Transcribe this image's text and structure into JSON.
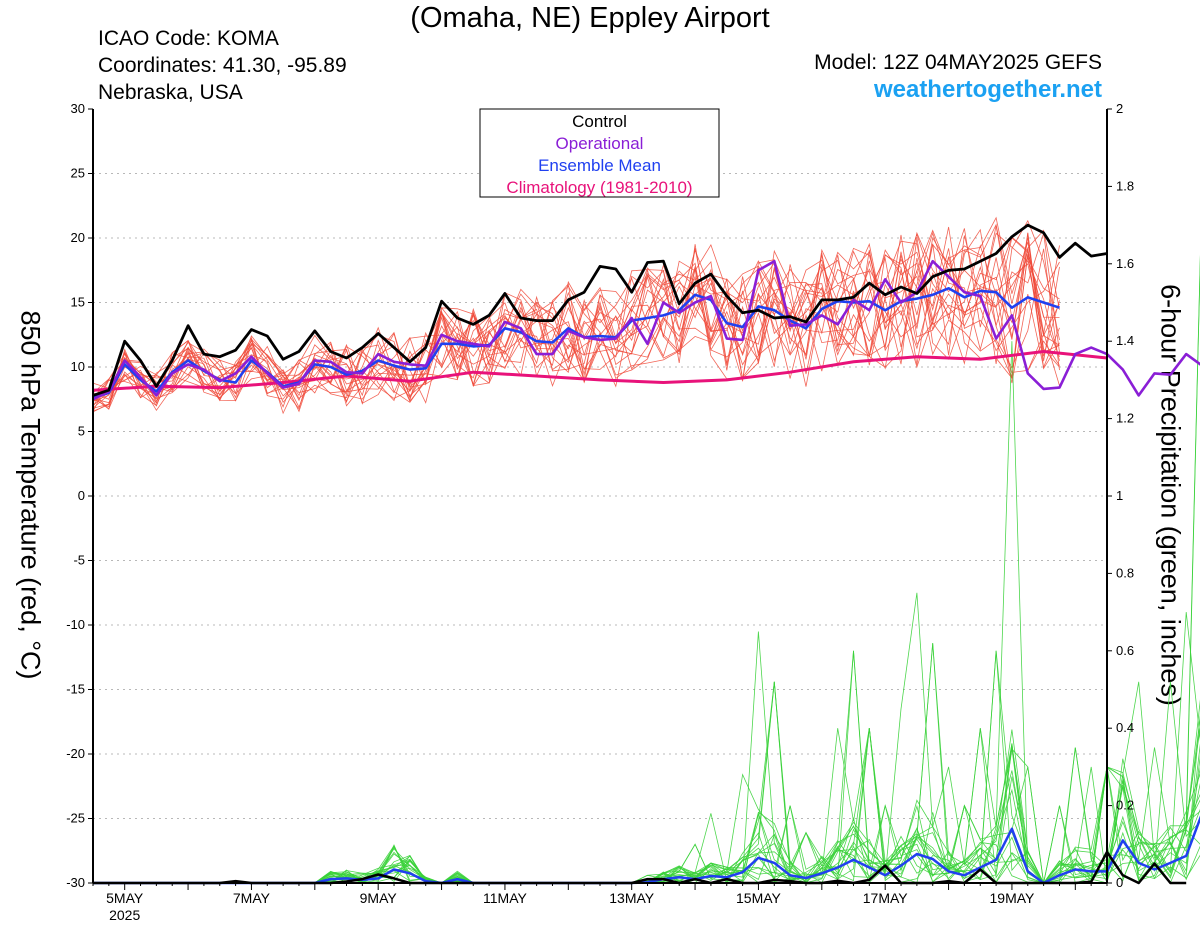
{
  "header": {
    "title": "(Omaha, NE) Eppley Airport",
    "icao": "ICAO Code: KOMA",
    "coordinates": "Coordinates: 41.30, -95.89",
    "region": "Nebraska, USA",
    "model": "Model: 12Z 04MAY2025 GEFS",
    "brand": "weathertogether.net"
  },
  "chart_data": {
    "type": "line",
    "ylabel": "850 hPa Temperature (red, °C)",
    "y2label": "6-hour Precipitation (green, inches)",
    "ylim": [
      -30,
      30
    ],
    "y2lim": [
      0,
      2
    ],
    "yticks": [
      30,
      25,
      20,
      15,
      10,
      5,
      0,
      -5,
      -10,
      -15,
      -20,
      -25,
      -30
    ],
    "y2ticks": [
      "2",
      "1.8",
      "1.6",
      "1.4",
      "1.2",
      "1",
      "0.8",
      "0.6",
      "0.4",
      "0.2",
      "0"
    ],
    "xlim": [
      0,
      64
    ],
    "x_unit": "6-hour steps from 12Z 04MAY2025",
    "xticks": [
      {
        "x": 2,
        "label": "5MAY",
        "sub": "2025"
      },
      {
        "x": 10,
        "label": "7MAY"
      },
      {
        "x": 18,
        "label": "9MAY"
      },
      {
        "x": 26,
        "label": "11MAY"
      },
      {
        "x": 34,
        "label": "13MAY"
      },
      {
        "x": 42,
        "label": "15MAY"
      },
      {
        "x": 50,
        "label": "17MAY"
      },
      {
        "x": 58,
        "label": "19MAY"
      }
    ],
    "grid": "dotted horizontal",
    "legend": {
      "position": "top-center",
      "entries": [
        {
          "label": "Control",
          "color": "#000000"
        },
        {
          "label": "Operational",
          "color": "#8a1ed6"
        },
        {
          "label": "Ensemble Mean",
          "color": "#2040f0"
        },
        {
          "label": "Climatology (1981-2010)",
          "color": "#e8127a"
        }
      ]
    },
    "colors": {
      "members_temp": "#f04a3a",
      "members_precip": "#3ad23a",
      "axis": "#000000",
      "grid": "#b8b8b8"
    },
    "control_temp": [
      7.8,
      8.2,
      12.0,
      10.5,
      8.5,
      10.5,
      13.2,
      11.0,
      10.8,
      11.3,
      12.9,
      12.4,
      10.6,
      11.2,
      12.8,
      11.2,
      10.7,
      11.5,
      12.6,
      11.5,
      10.4,
      11.5,
      15.1,
      13.8,
      13.3,
      14.0,
      15.7,
      13.8,
      13.6,
      13.6,
      15.2,
      15.8,
      17.8,
      17.6,
      15.8,
      18.1,
      18.2,
      14.9,
      16.5,
      17.2,
      15.5,
      14.2,
      14.4,
      13.8,
      13.9,
      13.5,
      15.2,
      15.2,
      15.4,
      16.5,
      15.6,
      16.2,
      15.7,
      17.0,
      17.5,
      17.6,
      18.2,
      18.8,
      20.1,
      21.0,
      20.4,
      18.5,
      19.6,
      18.6,
      18.8
    ],
    "operational_temp": [
      7.5,
      8.1,
      10.5,
      9.2,
      7.8,
      9.5,
      10.2,
      9.8,
      8.9,
      9.5,
      10.8,
      9.5,
      8.4,
      8.7,
      10.5,
      10.4,
      9.6,
      9.5,
      11.0,
      10.4,
      10.2,
      10.1,
      12.5,
      12.0,
      11.8,
      11.6,
      13.5,
      13.0,
      11.0,
      11.0,
      12.8,
      12.3,
      12.1,
      12.2,
      13.8,
      11.8,
      15.0,
      14.2,
      15.0,
      15.5,
      12.2,
      12.1,
      17.5,
      18.2,
      13.2,
      13.3,
      14.0,
      13.3,
      15.2,
      14.4,
      16.8,
      15.0,
      15.8,
      18.2,
      17.0,
      15.8,
      15.5,
      12.2,
      14.0,
      9.5,
      8.3,
      8.4,
      11.0,
      11.5,
      11.0,
      9.8,
      7.8,
      9.5,
      9.4,
      11.0,
      10.1
    ],
    "mean_temp": [
      7.6,
      8.0,
      10.2,
      9.0,
      8.1,
      9.6,
      10.5,
      9.7,
      9.0,
      8.8,
      10.5,
      9.6,
      8.5,
      8.8,
      10.2,
      10.0,
      9.4,
      9.7,
      10.5,
      10.1,
      9.8,
      9.9,
      11.8,
      11.8,
      11.6,
      11.7,
      13.0,
      12.7,
      12.0,
      11.9,
      13.0,
      12.3,
      12.4,
      12.3,
      13.6,
      13.8,
      14.0,
      14.4,
      15.6,
      15.2,
      13.4,
      13.1,
      14.7,
      14.4,
      13.6,
      13.0,
      14.5,
      15.1,
      15.0,
      15.1,
      14.4,
      15.1,
      15.3,
      15.6,
      16.1,
      15.4,
      15.9,
      15.8,
      14.6,
      15.4,
      15.0,
      14.6
    ],
    "climatology_temp": [
      [
        0,
        8.2
      ],
      [
        4,
        8.5
      ],
      [
        8,
        8.4
      ],
      [
        12,
        8.8
      ],
      [
        16,
        9.3
      ],
      [
        20,
        8.9
      ],
      [
        24,
        9.6
      ],
      [
        28,
        9.3
      ],
      [
        32,
        9.0
      ],
      [
        36,
        8.8
      ],
      [
        40,
        9.0
      ],
      [
        44,
        9.6
      ],
      [
        48,
        10.4
      ],
      [
        52,
        10.8
      ],
      [
        56,
        10.6
      ],
      [
        60,
        11.2
      ],
      [
        64,
        10.7
      ]
    ],
    "control_precip": [
      0,
      0,
      0,
      0,
      0,
      0,
      0,
      0,
      0,
      0.005,
      0,
      0,
      0,
      0,
      0,
      0,
      0.004,
      0.01,
      0.022,
      0.012,
      0,
      0,
      0,
      0,
      0,
      0,
      0,
      0,
      0,
      0,
      0,
      0,
      0,
      0,
      0,
      0.01,
      0.01,
      0,
      0.01,
      0,
      0.01,
      0,
      0,
      0.008,
      0.005,
      0,
      0,
      0.006,
      0,
      0.008,
      0.045,
      0,
      0,
      0,
      0.005,
      0,
      0.035,
      0,
      0,
      0,
      0,
      0,
      0,
      0.003,
      0.08,
      0.02,
      0,
      0.05,
      0,
      0
    ],
    "mean_precip": [
      0,
      0,
      0,
      0,
      0,
      0,
      0,
      0,
      0,
      0,
      0,
      0,
      0,
      0,
      0,
      0.01,
      0.012,
      0.008,
      0.012,
      0.035,
      0.025,
      0.005,
      0,
      0.01,
      0,
      0,
      0,
      0,
      0,
      0,
      0,
      0,
      0,
      0,
      0,
      0.002,
      0.01,
      0.015,
      0.01,
      0.018,
      0.015,
      0.028,
      0.065,
      0.052,
      0.02,
      0.013,
      0.025,
      0.04,
      0.06,
      0.04,
      0.02,
      0.045,
      0.075,
      0.062,
      0.03,
      0.02,
      0.04,
      0.06,
      0.14,
      0.03,
      0,
      0.02,
      0.035,
      0.03,
      0.03,
      0.11,
      0.052,
      0.035,
      0.052,
      0.07,
      0.18
    ],
    "member_count": 20
  }
}
